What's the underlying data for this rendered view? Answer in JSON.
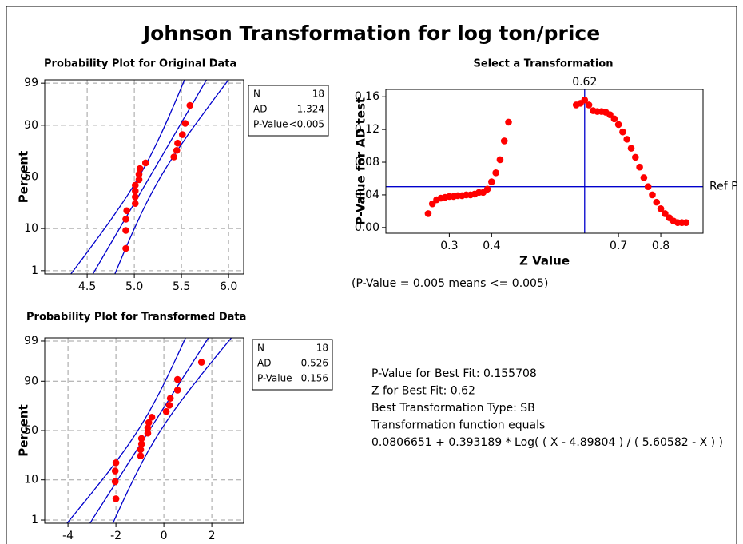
{
  "title": "Johnson Transformation for log ton/price",
  "chart_data": [
    {
      "type": "probability",
      "title": "Probability Plot for Original Data",
      "y_label": "Percent",
      "x": [
        4.91,
        4.91,
        4.91,
        4.92,
        5.01,
        5.01,
        5.01,
        5.01,
        5.05,
        5.05,
        5.06,
        5.12,
        5.42,
        5.45,
        5.46,
        5.51,
        5.54,
        5.59
      ],
      "values": [
        3.8,
        9.2,
        14.7,
        20.1,
        25.5,
        31.0,
        36.4,
        41.8,
        47.3,
        52.7,
        58.2,
        63.6,
        69.0,
        74.5,
        79.9,
        85.3,
        90.8,
        96.2
      ],
      "color": "#ff0000",
      "line_color": "#0000cc",
      "grid": true,
      "xlim": [
        4.05,
        6.16
      ],
      "xticks": [
        4.5,
        {
          "value": 5,
          "label": "5.0"
        },
        5.5,
        {
          "value": 6,
          "label": "6.0"
        }
      ],
      "ylim": [
        0.8,
        99.2
      ],
      "yticks": [
        1,
        10,
        50,
        90,
        99
      ],
      "yscale": "probability",
      "stats": [
        {
          "label": "N",
          "value": 18
        },
        {
          "label": "AD",
          "value": 1.324
        },
        {
          "label": "P-Value",
          "value": "<0.005"
        }
      ]
    },
    {
      "type": "scatter",
      "title": "Select a Transformation",
      "x_label": "Z Value",
      "y_label": "P-Value for AD test",
      "note": "(P-Value = 0.005 means <= 0.005)",
      "x": [
        0.25,
        0.26,
        0.27,
        0.28,
        0.29,
        0.3,
        0.31,
        0.32,
        0.33,
        0.34,
        0.35,
        0.36,
        0.37,
        0.38,
        0.39,
        0.4,
        0.41,
        0.42,
        0.43,
        0.44,
        0.6,
        0.61,
        0.62,
        0.63,
        0.64,
        0.65,
        0.66,
        0.67,
        0.68,
        0.69,
        0.7,
        0.71,
        0.72,
        0.73,
        0.74,
        0.75,
        0.76,
        0.77,
        0.78,
        0.79,
        0.8,
        0.81,
        0.82,
        0.83,
        0.84,
        0.85,
        0.86
      ],
      "values": [
        0.017,
        0.029,
        0.034,
        0.036,
        0.037,
        0.038,
        0.038,
        0.039,
        0.039,
        0.04,
        0.04,
        0.041,
        0.043,
        0.043,
        0.047,
        0.056,
        0.067,
        0.083,
        0.106,
        0.129,
        0.15,
        0.152,
        0.156,
        0.15,
        0.143,
        0.142,
        0.142,
        0.141,
        0.138,
        0.133,
        0.126,
        0.117,
        0.108,
        0.097,
        0.086,
        0.074,
        0.061,
        0.05,
        0.04,
        0.031,
        0.023,
        0.017,
        0.012,
        0.008,
        0.006,
        0.006,
        0.006
      ],
      "color": "#ff0000",
      "line_color": "#0000cc",
      "grid": false,
      "xlim": [
        0.15,
        0.9
      ],
      "xticks": [
        0.3,
        0.4,
        0.7,
        0.8
      ],
      "ylim": [
        -0.007,
        0.169
      ],
      "yticks": [
        {
          "value": 0,
          "label": "0.00"
        },
        0.04,
        0.08,
        0.12,
        0.16
      ],
      "ref_lines": [
        {
          "axis": "y",
          "value": 0.05,
          "label": "Ref P"
        },
        {
          "axis": "x",
          "value": 0.62
        }
      ]
    },
    {
      "type": "probability",
      "title": "Probability Plot for Transformed Data",
      "y_label": "Percent",
      "x": [
        -2.0,
        -2.03,
        -2.03,
        -2.0,
        -0.97,
        -0.97,
        -0.93,
        -0.93,
        -0.67,
        -0.67,
        -0.63,
        -0.5,
        0.1,
        0.23,
        0.27,
        0.57,
        0.57,
        1.57
      ],
      "values": [
        3.8,
        9.2,
        14.7,
        20.1,
        25.5,
        31.0,
        36.4,
        41.8,
        47.3,
        52.7,
        58.2,
        63.6,
        69.0,
        74.5,
        79.9,
        85.3,
        90.8,
        96.2
      ],
      "color": "#ff0000",
      "line_color": "#0000cc",
      "grid": true,
      "xlim": [
        -4.97,
        3.33
      ],
      "xticks": [
        -4,
        -2,
        0,
        2
      ],
      "ylim": [
        0.8,
        99.2
      ],
      "yticks": [
        1,
        10,
        50,
        90,
        99
      ],
      "yscale": "probability",
      "stats": [
        {
          "label": "N",
          "value": 18
        },
        {
          "label": "AD",
          "value": 0.526
        },
        {
          "label": "P-Value",
          "value": 0.156
        }
      ]
    }
  ],
  "summary": [
    "P-Value for Best Fit: 0.155708",
    "Z for Best Fit: 0.62",
    "Best Transformation Type: SB",
    "Transformation function equals",
    "0.0806651 + 0.393189 * Log( ( X - 4.89804 ) / ( 5.60582 - X ) )"
  ]
}
